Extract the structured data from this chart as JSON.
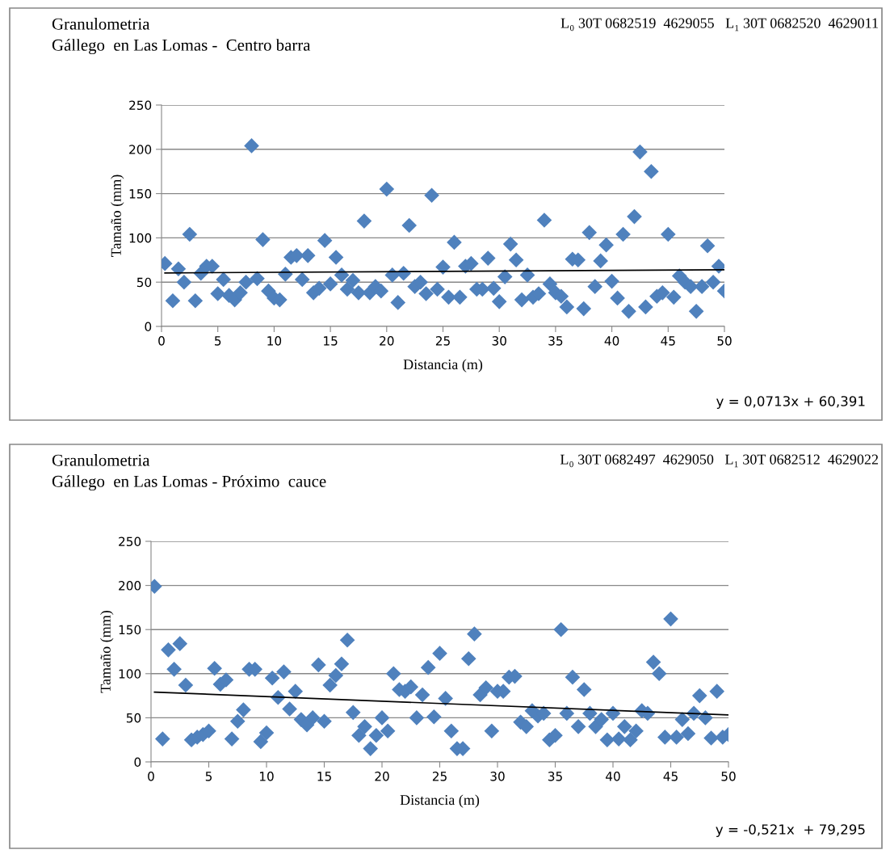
{
  "chart_data": [
    {
      "type": "scatter",
      "title": "Granulometria\nGállego  en Las Lomas -  Centro barra",
      "subtitle": "L₀ 30T 0682519  4629055   L₁ 30T 0682520  4629011",
      "xlabel": "Distancia (m)",
      "ylabel": "Tamaño (mm)",
      "annotations": [
        "y = 0,0713x + 60,391"
      ],
      "xlim": [
        0,
        50
      ],
      "ylim": [
        0,
        250
      ],
      "xticks": [
        0,
        5,
        10,
        15,
        20,
        25,
        30,
        35,
        40,
        45,
        50
      ],
      "yticks": [
        0,
        50,
        100,
        150,
        200,
        250
      ],
      "grid": "y",
      "legend": false,
      "marker": "diamond",
      "series": [
        {
          "color": "#4f81bd",
          "x": [
            0.3,
            1,
            1.5,
            2,
            2.5,
            3,
            3.5,
            4,
            4.5,
            5,
            5.5,
            6,
            6.5,
            7,
            7.5,
            8,
            8.5,
            9,
            9.5,
            10,
            10.5,
            11,
            11.5,
            12,
            12.5,
            13,
            13.5,
            14,
            14.5,
            15,
            15.5,
            16,
            16.5,
            17,
            17.5,
            18,
            18.5,
            19,
            19.5,
            20,
            20.5,
            21,
            21.5,
            22,
            22.5,
            23,
            23.5,
            24,
            24.5,
            25,
            25.5,
            26,
            26.5,
            27,
            27.5,
            28,
            28.5,
            29,
            29.5,
            30,
            30.5,
            31,
            31.5,
            32,
            32.5,
            33,
            33.5,
            34,
            34.5,
            35,
            35.5,
            36,
            36.5,
            37,
            37.5,
            38,
            38.5,
            39,
            39.5,
            40,
            40.5,
            41,
            41.5,
            42,
            42.5,
            43,
            43.5,
            44,
            44.5,
            45,
            45.5,
            46,
            46.5,
            47,
            47.5,
            48,
            48.5,
            49,
            49.5,
            50
          ],
          "values": [
            71,
            29,
            65,
            50,
            104,
            29,
            60,
            68,
            68,
            37,
            53,
            35,
            30,
            38,
            50,
            204,
            54,
            98,
            40,
            32,
            30,
            59,
            78,
            80,
            53,
            80,
            38,
            43,
            97,
            48,
            78,
            58,
            42,
            52,
            38,
            119,
            38,
            45,
            40,
            155,
            58,
            27,
            60,
            114,
            45,
            50,
            37,
            148,
            42,
            67,
            33,
            95,
            33,
            68,
            71,
            42,
            42,
            77,
            43,
            28,
            56,
            93,
            75,
            30,
            58,
            33,
            37,
            120,
            48,
            38,
            34,
            22,
            76,
            75,
            20,
            106,
            45,
            74,
            92,
            51,
            32,
            104,
            17,
            124,
            197,
            22,
            175,
            34,
            38,
            104,
            33,
            57,
            50,
            45,
            17,
            45,
            91,
            50,
            68,
            40
          ]
        },
        {
          "type": "line",
          "color": "#000000",
          "marker": "none",
          "x": [
            0.3,
            50
          ],
          "values": [
            60.4,
            64.0
          ]
        }
      ]
    },
    {
      "type": "scatter",
      "title": "Granulometria\nGállego  en Las Lomas - Próximo  cauce",
      "subtitle": "L₀ 30T 0682497  4629050   L₁ 30T 0682512  4629022",
      "xlabel": "Distancia (m)",
      "ylabel": "Tamaño (mm)",
      "annotations": [
        "y = -0,521x  + 79,295"
      ],
      "xlim": [
        0,
        50
      ],
      "ylim": [
        0,
        250
      ],
      "xticks": [
        0,
        5,
        10,
        15,
        20,
        25,
        30,
        35,
        40,
        45,
        50
      ],
      "yticks": [
        0,
        50,
        100,
        150,
        200,
        250
      ],
      "grid": "y",
      "legend": false,
      "marker": "diamond",
      "series": [
        {
          "color": "#4f81bd",
          "x": [
            0.3,
            1,
            1.5,
            2,
            2.5,
            3,
            3.5,
            4,
            4.5,
            5,
            5.5,
            6,
            6.5,
            7,
            7.5,
            8,
            8.5,
            9,
            9.5,
            10,
            10.5,
            11,
            11.5,
            12,
            12.5,
            13,
            13.5,
            14,
            14.5,
            15,
            15.5,
            16,
            16.5,
            17,
            17.5,
            18,
            18.5,
            19,
            19.5,
            20,
            20.5,
            21,
            21.5,
            22,
            22.5,
            23,
            23.5,
            24,
            24.5,
            25,
            25.5,
            26,
            26.5,
            27,
            27.5,
            28,
            28.5,
            29,
            29.5,
            30,
            30.5,
            31,
            31.5,
            32,
            32.5,
            33,
            33.5,
            34,
            34.5,
            35,
            35.5,
            36,
            36.5,
            37,
            37.5,
            38,
            38.5,
            39,
            39.5,
            40,
            40.5,
            41,
            41.5,
            42,
            42.5,
            43,
            43.5,
            44,
            44.5,
            45,
            45.5,
            46,
            46.5,
            47,
            47.5,
            48,
            48.5,
            49,
            49.5,
            50
          ],
          "values": [
            199,
            26,
            127,
            105,
            134,
            87,
            25,
            28,
            31,
            35,
            106,
            88,
            93,
            26,
            46,
            59,
            105,
            105,
            23,
            33,
            95,
            73,
            102,
            60,
            80,
            48,
            42,
            50,
            110,
            46,
            87,
            98,
            111,
            138,
            56,
            30,
            40,
            15,
            30,
            50,
            35,
            100,
            82,
            80,
            85,
            50,
            76,
            107,
            51,
            123,
            72,
            35,
            15,
            15,
            117,
            145,
            76,
            84,
            35,
            80,
            80,
            96,
            97,
            45,
            40,
            58,
            52,
            55,
            25,
            30,
            150,
            55,
            96,
            40,
            82,
            55,
            40,
            48,
            25,
            55,
            26,
            40,
            25,
            35,
            58,
            55,
            113,
            100,
            28,
            162,
            28,
            48,
            32,
            55,
            75,
            50,
            27,
            80,
            28,
            31
          ]
        },
        {
          "type": "line",
          "color": "#000000",
          "marker": "none",
          "x": [
            0.3,
            50
          ],
          "values": [
            79.1,
            53.2
          ]
        }
      ]
    }
  ]
}
